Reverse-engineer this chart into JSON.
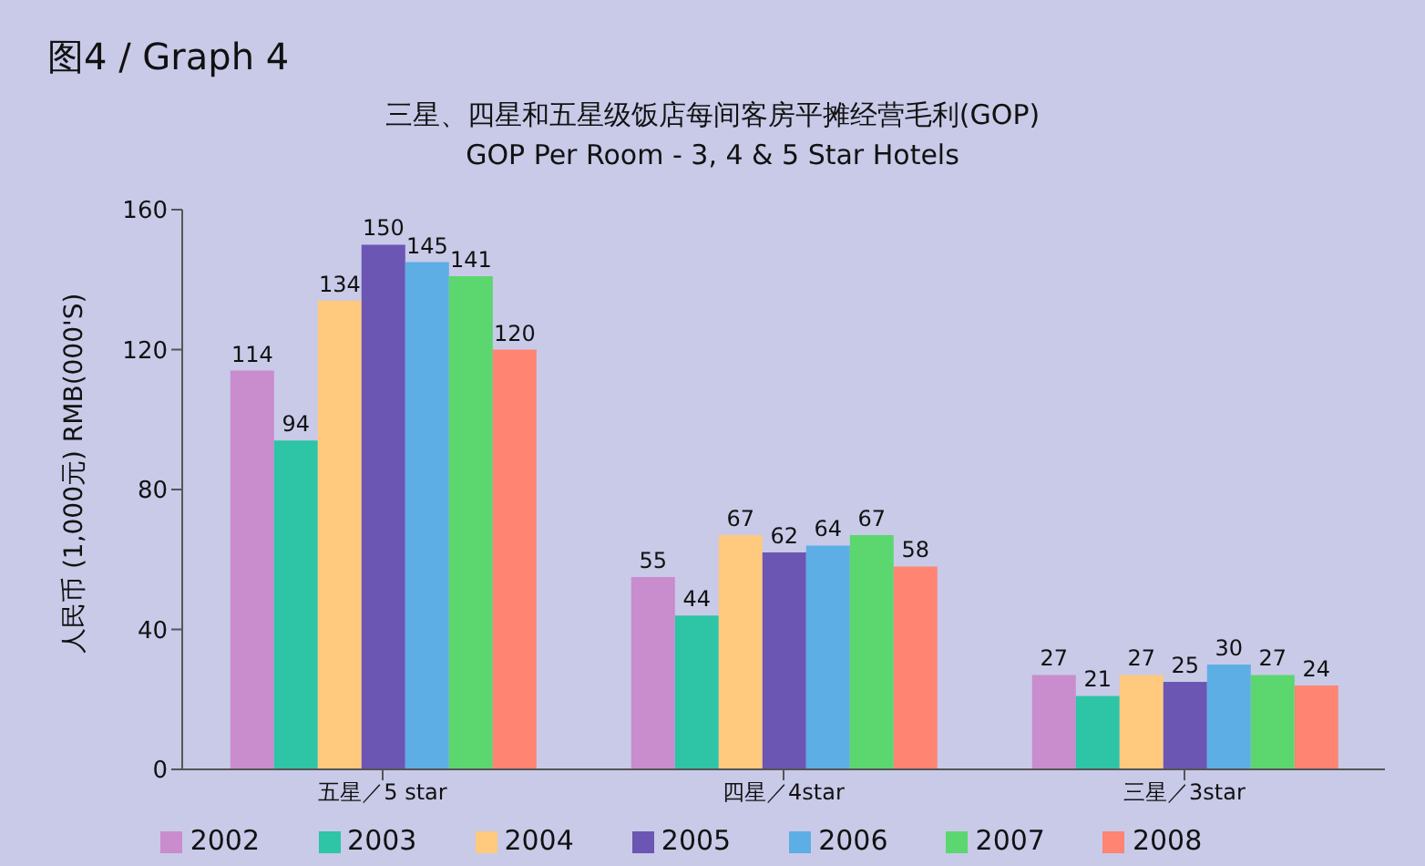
{
  "chart_data": {
    "type": "bar",
    "title": "图4 / Graph 4",
    "subtitle": "三星、四星和五星级饭店每间客房平摊经营毛利(GOP)\nGOP Per Room - 3, 4 & 5 Star Hotels",
    "ylabel": "人民币 (1,000元) RMB(000'S)",
    "categories": [
      "五星／5 star",
      "四星／4star",
      "三星／3star"
    ],
    "series": [
      {
        "name": "2002",
        "color": "#c98ccc",
        "values": [
          114,
          55,
          27
        ]
      },
      {
        "name": "2003",
        "color": "#2ec4a6",
        "values": [
          94,
          44,
          21
        ]
      },
      {
        "name": "2004",
        "color": "#ffc97e",
        "values": [
          134,
          67,
          27
        ]
      },
      {
        "name": "2005",
        "color": "#6b56b4",
        "values": [
          150,
          62,
          25
        ]
      },
      {
        "name": "2006",
        "color": "#5eaee6",
        "values": [
          145,
          64,
          30
        ]
      },
      {
        "name": "2007",
        "color": "#5cd66e",
        "values": [
          141,
          67,
          27
        ]
      },
      {
        "name": "2008",
        "color": "#ff8472",
        "values": [
          120,
          58,
          24
        ]
      }
    ],
    "ylim": [
      0,
      160
    ],
    "yticks": [
      0,
      40,
      80,
      120,
      160
    ],
    "data_labels": true,
    "legend": "bottom"
  }
}
